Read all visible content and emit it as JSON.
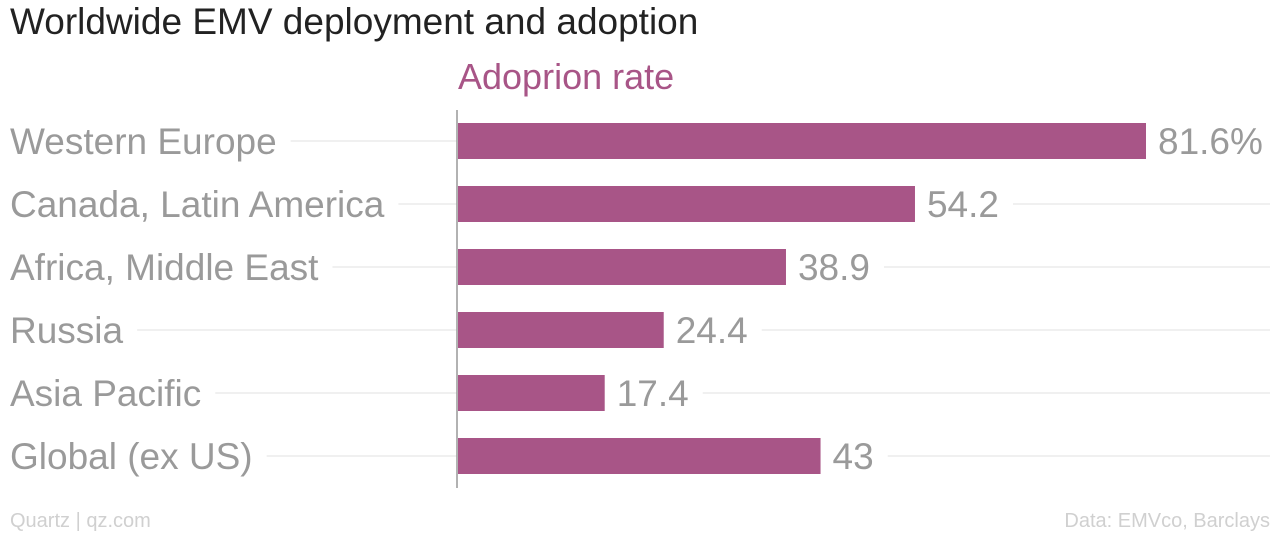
{
  "title": "Worldwide EMV deployment and adoption",
  "footer": {
    "left": "Quartz | qz.com",
    "right": "Data: EMVco, Barclays"
  },
  "colors": {
    "bar": "#a85587",
    "series_title": "#a85587",
    "gridline": "#ececec",
    "axis": "#999999"
  },
  "chart_data": {
    "type": "bar",
    "orientation": "horizontal",
    "categories": [
      "Western Europe",
      "Canada, Latin America",
      "Africa, Middle East",
      "Russia",
      "Asia Pacific",
      "Global (ex US)"
    ],
    "series": [
      {
        "name": "Adoprion rate",
        "values": [
          81.6,
          54.2,
          38.9,
          24.4,
          17.4,
          43
        ],
        "value_labels": [
          "81.6%",
          "54.2",
          "38.9",
          "24.4",
          "17.4",
          "43"
        ]
      }
    ],
    "xlim": [
      0,
      100
    ],
    "grid": true
  }
}
